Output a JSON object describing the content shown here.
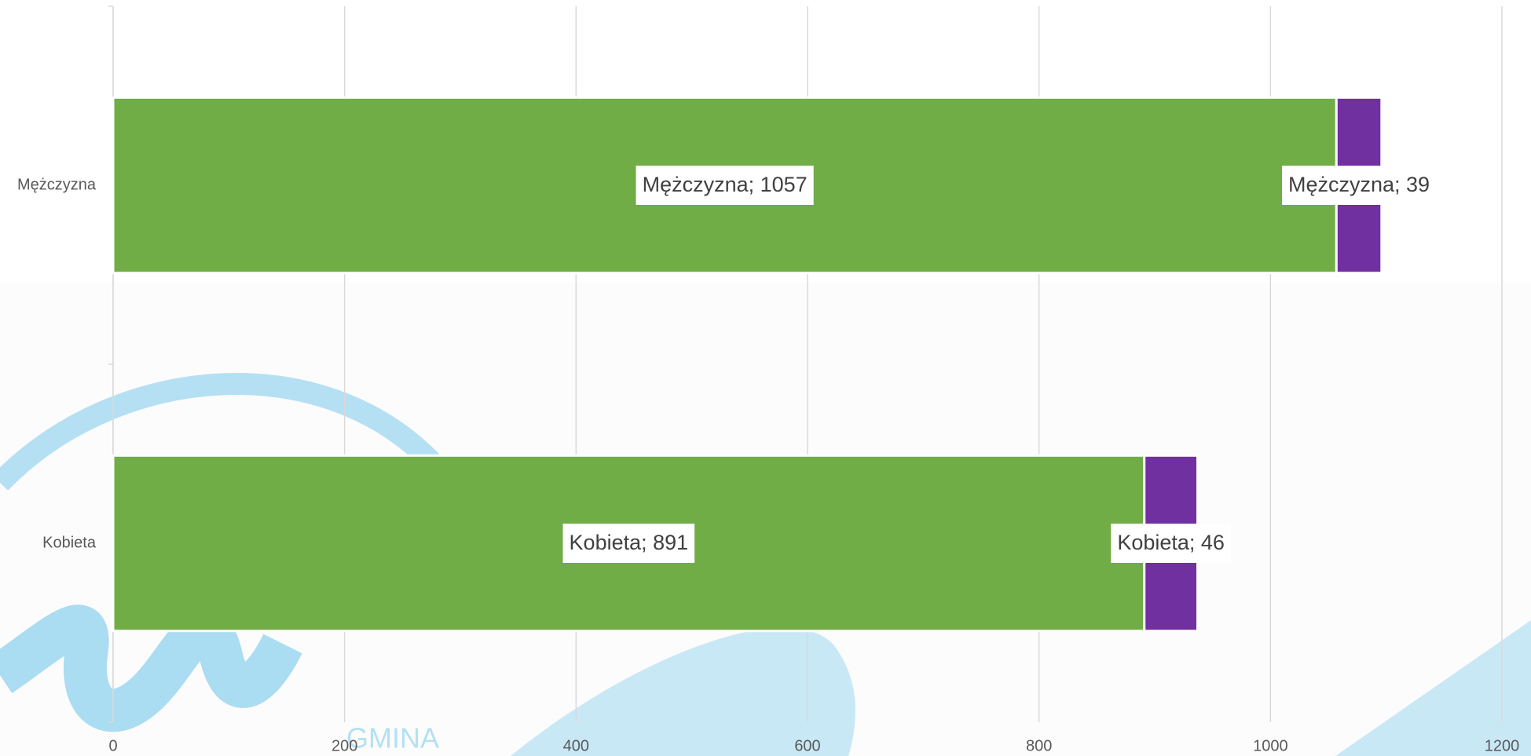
{
  "chart_data": {
    "type": "stacked-bar-horizontal",
    "categories": [
      "Mężczyzna",
      "Kobieta"
    ],
    "series": [
      {
        "color": "#70ad47",
        "values": [
          1057,
          891
        ],
        "value_labels": [
          "Mężczyzna; 1057",
          "Kobieta; 891"
        ]
      },
      {
        "color": "#7030a0",
        "values": [
          39,
          46
        ],
        "value_labels": [
          "Mężczyzna; 39",
          "Kobieta; 46"
        ]
      }
    ],
    "xlim": [
      0,
      1200
    ],
    "xticks": [
      0,
      200,
      400,
      600,
      800,
      1000,
      1200
    ],
    "grid": true,
    "watermark": "GMINA"
  }
}
